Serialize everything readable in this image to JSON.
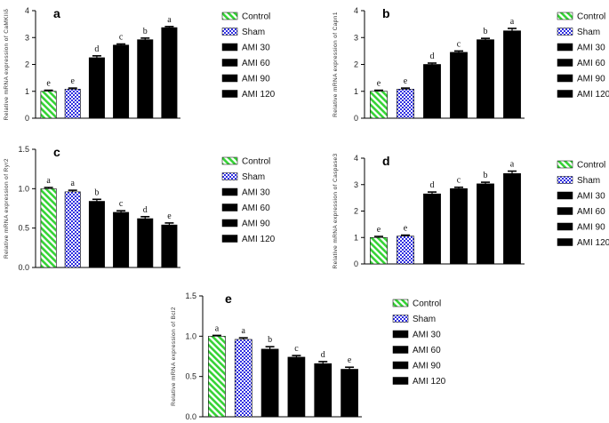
{
  "legend": [
    "Control",
    "Sham",
    "AMI 30",
    "AMI 60",
    "AMI 90",
    "AMI 120"
  ],
  "colors": {
    "Control": "#35d335",
    "Sham": "#2f2fe0",
    "AMI 30": "#ffb040",
    "AMI 60": "#b06060",
    "AMI 90": "#f035f0",
    "AMI 120": "#ff3030"
  },
  "chart_data": [
    {
      "type": "bar",
      "panel_label": "a",
      "ylabel": "Relative mRNA expression of CaMKIIδ",
      "categories": [
        "Control",
        "Sham",
        "AMI 30",
        "AMI 60",
        "AMI 90",
        "AMI 120"
      ],
      "values": [
        1.0,
        1.08,
        2.25,
        2.72,
        2.92,
        3.37
      ],
      "errors": [
        0.04,
        0.04,
        0.07,
        0.04,
        0.06,
        0.04
      ],
      "letters": [
        "e",
        "e",
        "d",
        "c",
        "b",
        "a"
      ],
      "ylim": [
        0,
        4
      ],
      "yticks": [
        "0",
        "1",
        "2",
        "3",
        "4"
      ]
    },
    {
      "type": "bar",
      "panel_label": "b",
      "ylabel": "Relative mRNA expression of Capn1",
      "categories": [
        "Control",
        "Sham",
        "AMI 30",
        "AMI 60",
        "AMI 90",
        "AMI 120"
      ],
      "values": [
        1.0,
        1.08,
        2.0,
        2.45,
        2.92,
        3.25
      ],
      "errors": [
        0.04,
        0.04,
        0.05,
        0.05,
        0.05,
        0.09
      ],
      "letters": [
        "e",
        "e",
        "d",
        "c",
        "b",
        "a"
      ],
      "ylim": [
        0,
        4
      ],
      "yticks": [
        "0",
        "1",
        "2",
        "3",
        "4"
      ]
    },
    {
      "type": "bar",
      "panel_label": "c",
      "ylabel": "Relative mRNA expression of Ryr2",
      "categories": [
        "Control",
        "Sham",
        "AMI 30",
        "AMI 60",
        "AMI 90",
        "AMI 120"
      ],
      "values": [
        1.0,
        0.96,
        0.84,
        0.7,
        0.62,
        0.54
      ],
      "errors": [
        0.015,
        0.02,
        0.025,
        0.02,
        0.025,
        0.025
      ],
      "letters": [
        "a",
        "a",
        "b",
        "c",
        "d",
        "e"
      ],
      "ylim": [
        0,
        1.5
      ],
      "yticks": [
        "0.0",
        "0.5",
        "1.0",
        "1.5"
      ]
    },
    {
      "type": "bar",
      "panel_label": "d",
      "ylabel": "Relative mRNA expression of Caspase3",
      "categories": [
        "Control",
        "Sham",
        "AMI 30",
        "AMI 60",
        "AMI 90",
        "AMI 120"
      ],
      "values": [
        1.0,
        1.05,
        2.65,
        2.85,
        3.03,
        3.42
      ],
      "errors": [
        0.04,
        0.04,
        0.07,
        0.05,
        0.06,
        0.09
      ],
      "letters": [
        "e",
        "e",
        "d",
        "c",
        "b",
        "a"
      ],
      "ylim": [
        0,
        4
      ],
      "yticks": [
        "0",
        "1",
        "2",
        "3",
        "4"
      ]
    },
    {
      "type": "bar",
      "panel_label": "e",
      "ylabel": "Relative mRNA expression of Bcl2",
      "categories": [
        "Control",
        "Sham",
        "AMI 30",
        "AMI 60",
        "AMI 90",
        "AMI 120"
      ],
      "values": [
        1.0,
        0.96,
        0.84,
        0.74,
        0.66,
        0.59
      ],
      "errors": [
        0.01,
        0.02,
        0.03,
        0.02,
        0.025,
        0.025
      ],
      "letters": [
        "a",
        "a",
        "b",
        "c",
        "d",
        "e"
      ],
      "ylim": [
        0,
        1.5
      ],
      "yticks": [
        "0.0",
        "0.5",
        "1.0",
        "1.5"
      ]
    }
  ]
}
